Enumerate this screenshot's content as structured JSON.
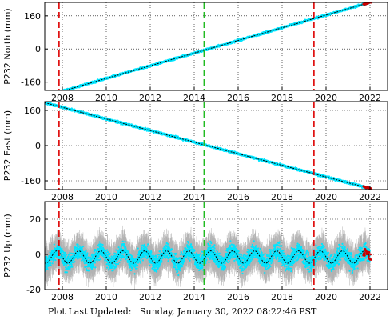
{
  "footer": {
    "label": "Plot Last Updated:",
    "timestamp": "Sunday, January 30, 2022 08:22:46 PST"
  },
  "colors": {
    "observations": "#00e5ff",
    "error_bars": "#b3b3b3",
    "model_line": "#000000",
    "recent_points": "#cc0000",
    "event_line_red": "#dd0000",
    "event_line_green": "#22bb22"
  },
  "chart_data": [
    {
      "type": "scatter",
      "ylabel": "P232 North (mm)",
      "xlim": [
        2007.2,
        2022.8
      ],
      "ylim": [
        -200,
        225
      ],
      "xticks": [
        2008,
        2010,
        2012,
        2014,
        2016,
        2018,
        2020,
        2022
      ],
      "yticks": [
        -160,
        0,
        160
      ],
      "grid": true,
      "series": [
        {
          "kind": "trend",
          "x": [
            2007.2,
            2022.0
          ],
          "values": [
            -228,
            225
          ]
        }
      ],
      "noise_mm": 5,
      "vlines": [
        {
          "x": 2007.85,
          "color": "red"
        },
        {
          "x": 2014.45,
          "color": "green"
        },
        {
          "x": 2019.45,
          "color": "red"
        }
      ]
    },
    {
      "type": "scatter",
      "ylabel": "P232 East (mm)",
      "xlim": [
        2007.2,
        2022.8
      ],
      "ylim": [
        -200,
        200
      ],
      "xticks": [
        2008,
        2010,
        2012,
        2014,
        2016,
        2018,
        2020,
        2022
      ],
      "yticks": [
        -160,
        0,
        160
      ],
      "grid": true,
      "series": [
        {
          "kind": "trend",
          "x": [
            2007.2,
            2022.0
          ],
          "values": [
            195,
            -195
          ]
        }
      ],
      "noise_mm": 5,
      "vlines": [
        {
          "x": 2007.85,
          "color": "red"
        },
        {
          "x": 2014.45,
          "color": "green"
        },
        {
          "x": 2019.45,
          "color": "red"
        }
      ]
    },
    {
      "type": "scatter",
      "ylabel": "P232 Up (mm)",
      "xlim": [
        2007.2,
        2022.8
      ],
      "ylim": [
        -20,
        30
      ],
      "xticks": [
        2008,
        2010,
        2012,
        2014,
        2016,
        2018,
        2020,
        2022
      ],
      "yticks": [
        -20,
        0,
        20
      ],
      "grid": true,
      "series": [
        {
          "kind": "seasonal",
          "x": [
            2007.2,
            2022.0
          ],
          "mean": -1.5,
          "amplitude": 3.5,
          "period_years": 1
        }
      ],
      "noise_mm": 4.5,
      "error_bar_mm": 7,
      "vlines": [
        {
          "x": 2007.85,
          "color": "red"
        },
        {
          "x": 2014.45,
          "color": "green"
        },
        {
          "x": 2019.45,
          "color": "red"
        }
      ]
    }
  ]
}
